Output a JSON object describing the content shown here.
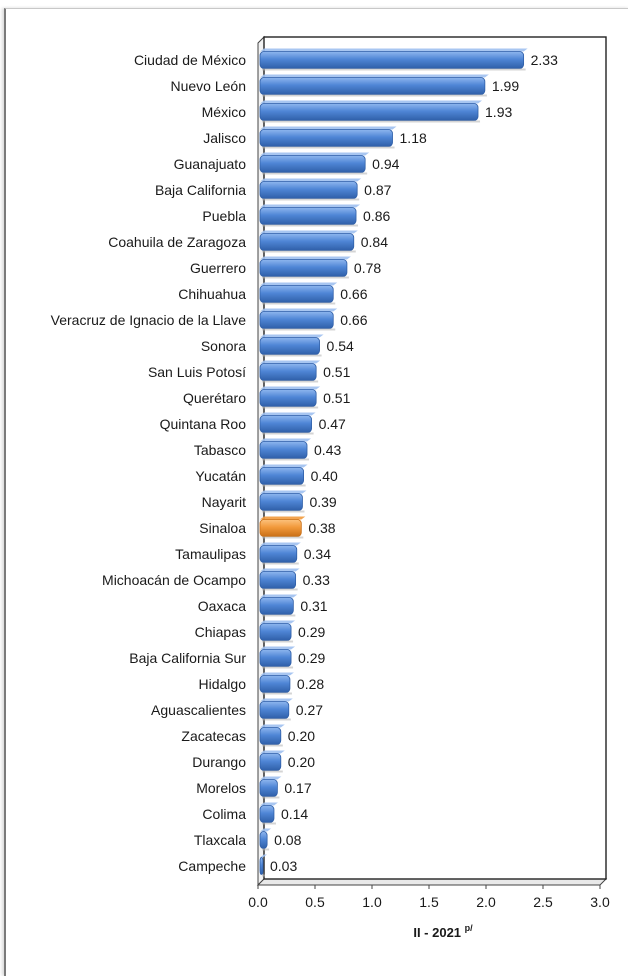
{
  "chart_data": {
    "type": "bar",
    "orientation": "horizontal",
    "categories": [
      "Ciudad de México",
      "Nuevo León",
      "México",
      "Jalisco",
      "Guanajuato",
      "Baja California",
      "Puebla",
      "Coahuila de Zaragoza",
      "Guerrero",
      "Chihuahua",
      "Veracruz de Ignacio de la Llave",
      "Sonora",
      "San Luis Potosí",
      "Querétaro",
      "Quintana Roo",
      "Tabasco",
      "Yucatán",
      "Nayarit",
      "Sinaloa",
      "Tamaulipas",
      "Michoacán de Ocampo",
      "Oaxaca",
      "Chiapas",
      "Baja California Sur",
      "Hidalgo",
      "Aguascalientes",
      "Zacatecas",
      "Durango",
      "Morelos",
      "Colima",
      "Tlaxcala",
      "Campeche"
    ],
    "values": [
      2.33,
      1.99,
      1.93,
      1.18,
      0.94,
      0.87,
      0.86,
      0.84,
      0.78,
      0.66,
      0.66,
      0.54,
      0.51,
      0.51,
      0.47,
      0.43,
      0.4,
      0.39,
      0.38,
      0.34,
      0.33,
      0.31,
      0.29,
      0.29,
      0.28,
      0.27,
      0.2,
      0.2,
      0.17,
      0.14,
      0.08,
      0.03
    ],
    "value_labels": [
      "2.33",
      "1.99",
      "1.93",
      "1.18",
      "0.94",
      "0.87",
      "0.86",
      "0.84",
      "0.78",
      "0.66",
      "0.66",
      "0.54",
      "0.51",
      "0.51",
      "0.47",
      "0.43",
      "0.40",
      "0.39",
      "0.38",
      "0.34",
      "0.33",
      "0.31",
      "0.29",
      "0.29",
      "0.28",
      "0.27",
      "0.20",
      "0.20",
      "0.17",
      "0.14",
      "0.08",
      "0.03"
    ],
    "xlim": [
      0,
      3.0
    ],
    "xticks": [
      "0.0",
      "0.5",
      "1.0",
      "1.5",
      "2.0",
      "2.5",
      "3.0"
    ],
    "xlabel": "II - 2021",
    "xlabel_superscript": "p/",
    "highlight_category": "Sinaloa",
    "colors": {
      "bar": "#4f86d6",
      "bar_dark": "#2f5fa8",
      "highlight": "#f29a3c",
      "highlight_dark": "#c96f16"
    },
    "grid": false,
    "legend": "none"
  }
}
